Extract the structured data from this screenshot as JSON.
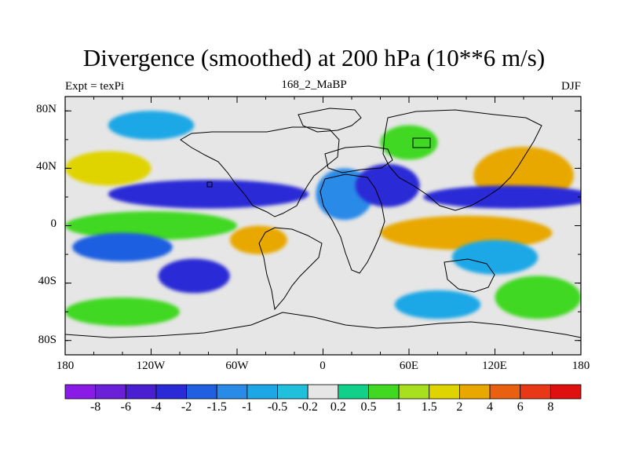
{
  "title": "Divergence (smoothed) at 200 hPa (10**6 m/s)",
  "subtitle_left": "Expt = texPi",
  "subtitle_center": "168_2_MaBP",
  "subtitle_right": "DJF",
  "lat_labels": [
    "80N",
    "40N",
    "0",
    "40S",
    "80S"
  ],
  "lon_labels": [
    "180",
    "120W",
    "60W",
    "0",
    "60E",
    "120E",
    "180"
  ],
  "colorbar": {
    "labels": [
      "-8",
      "-6",
      "-4",
      "-2",
      "-1.5",
      "-1",
      "-0.5",
      "-0.2",
      "0.2",
      "0.5",
      "1",
      "1.5",
      "2",
      "4",
      "6",
      "8"
    ],
    "colors": [
      "#8a1be6",
      "#6b1fd9",
      "#4a1fd2",
      "#2a2ad6",
      "#1f5fe0",
      "#2a8ae8",
      "#1ea7e6",
      "#20c0dc",
      "#e6e6e6",
      "#10d08a",
      "#40d820",
      "#a8e020",
      "#e0d400",
      "#e8a800",
      "#e86010",
      "#e83818",
      "#e01010"
    ]
  },
  "chart_data": {
    "type": "heatmap",
    "title": "Divergence (smoothed) at 200 hPa (10**6 m/s)",
    "projection": "cylindrical equidistant",
    "lon_range": [
      -180,
      180
    ],
    "lat_range": [
      -90,
      90
    ],
    "units": "10**6 m/s",
    "contour_levels": [
      -8,
      -6,
      -4,
      -2,
      -1.5,
      -1,
      -0.5,
      -0.2,
      0.2,
      0.5,
      1,
      1.5,
      2,
      4,
      6,
      8
    ],
    "fields": [
      {
        "lon": -120,
        "lat": 0,
        "lon_width": 120,
        "lat_height": 10,
        "value": 0.7
      },
      {
        "lon": -80,
        "lat": 22,
        "lon_width": 140,
        "lat_height": 10,
        "value": -2.5
      },
      {
        "lon": -150,
        "lat": 40,
        "lon_width": 60,
        "lat_height": 12,
        "value": 1.5
      },
      {
        "lon": -140,
        "lat": -15,
        "lon_width": 70,
        "lat_height": 10,
        "value": -2
      },
      {
        "lon": -45,
        "lat": -10,
        "lon_width": 40,
        "lat_height": 10,
        "value": 2
      },
      {
        "lon": 15,
        "lat": 22,
        "lon_width": 40,
        "lat_height": 18,
        "value": -1.5
      },
      {
        "lon": 100,
        "lat": -5,
        "lon_width": 120,
        "lat_height": 12,
        "value": 3
      },
      {
        "lon": 45,
        "lat": 28,
        "lon_width": 45,
        "lat_height": 15,
        "value": -3
      },
      {
        "lon": 140,
        "lat": 35,
        "lon_width": 70,
        "lat_height": 20,
        "value": 2.5
      },
      {
        "lon": 130,
        "lat": 20,
        "lon_width": 120,
        "lat_height": 8,
        "value": -2.5
      },
      {
        "lon": -90,
        "lat": -35,
        "lon_width": 50,
        "lat_height": 12,
        "value": -3
      },
      {
        "lon": -140,
        "lat": -60,
        "lon_width": 80,
        "lat_height": 10,
        "value": 0.8
      },
      {
        "lon": 150,
        "lat": -50,
        "lon_width": 60,
        "lat_height": 15,
        "value": 0.8
      },
      {
        "lon": 120,
        "lat": -22,
        "lon_width": 60,
        "lat_height": 12,
        "value": -0.8
      },
      {
        "lon": 80,
        "lat": -55,
        "lon_width": 60,
        "lat_height": 10,
        "value": -0.8
      },
      {
        "lon": 60,
        "lat": 58,
        "lon_width": 40,
        "lat_height": 12,
        "value": 0.6
      },
      {
        "lon": -120,
        "lat": 70,
        "lon_width": 60,
        "lat_height": 10,
        "value": -0.6
      }
    ]
  }
}
